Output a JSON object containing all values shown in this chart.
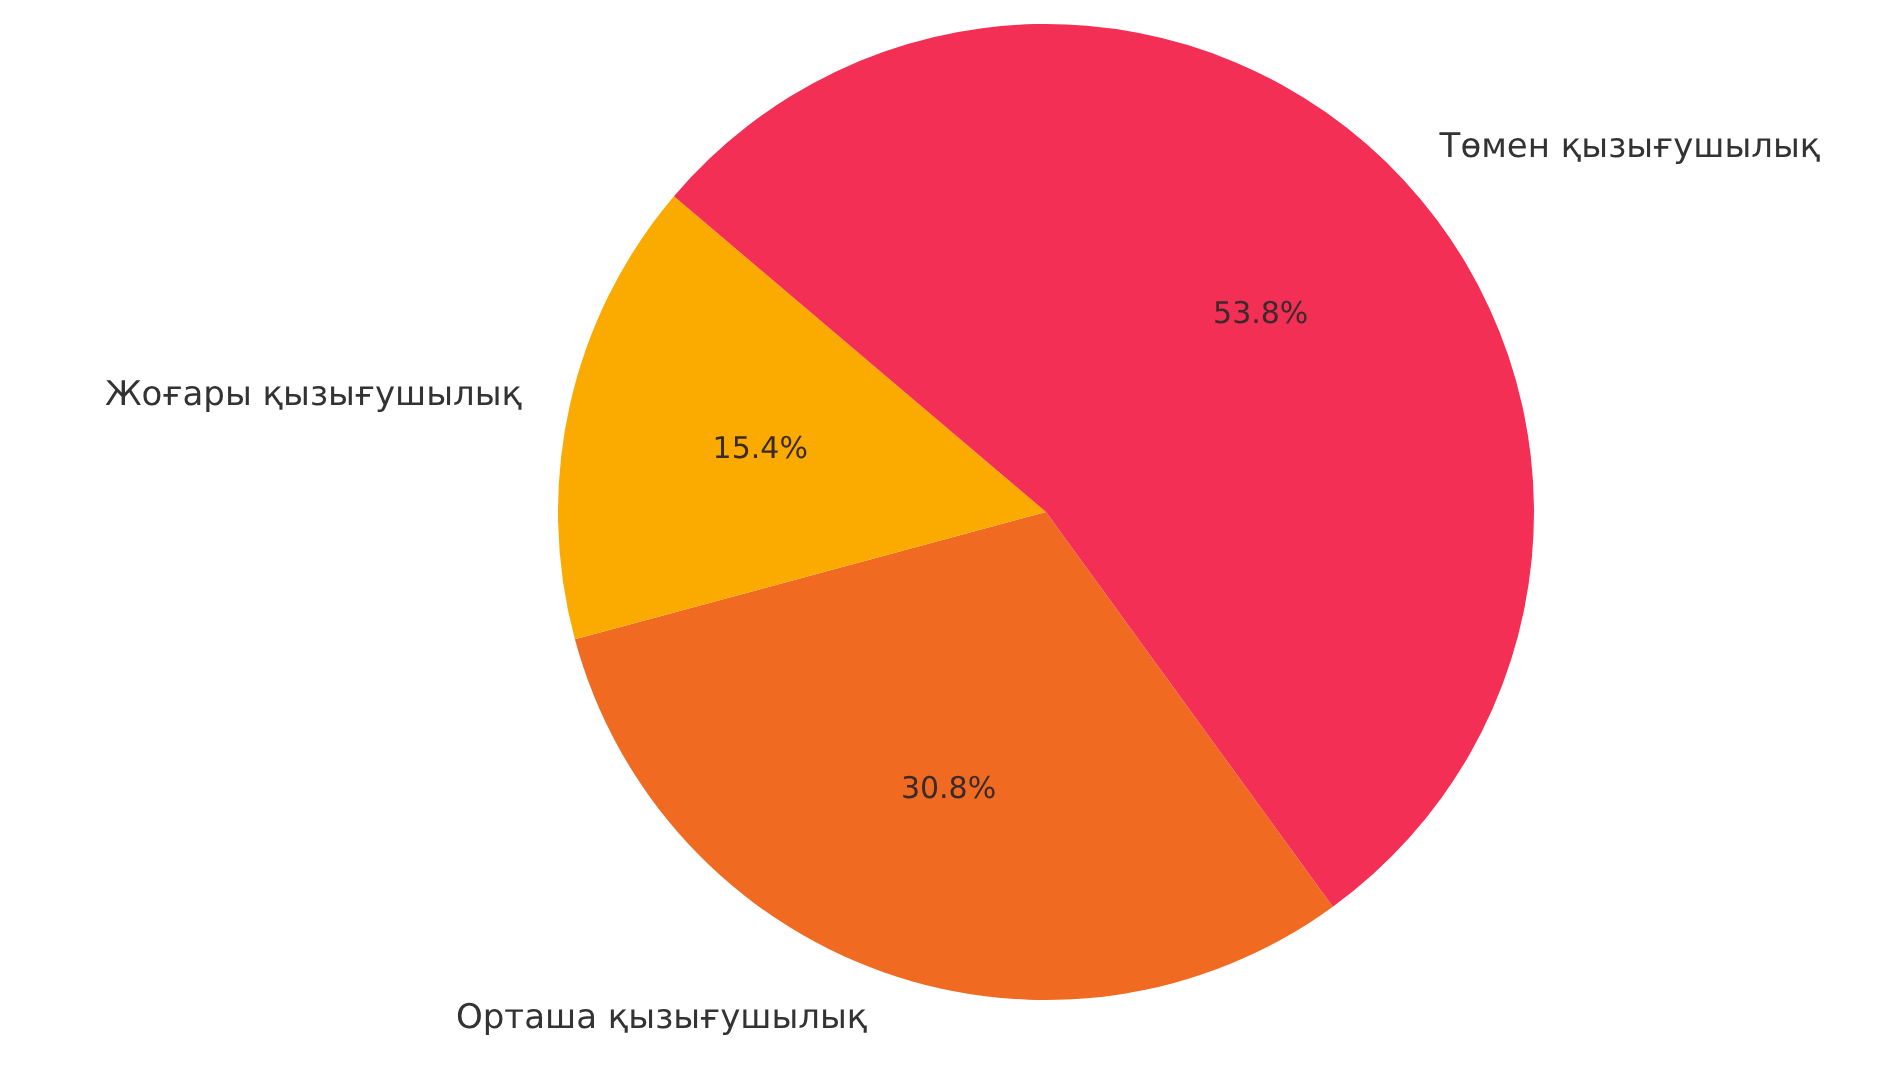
{
  "chart_data": {
    "type": "pie",
    "categories": [
      "Орташа қызығушылық",
      "Жоғары қызығушылық",
      "Төмен қызығушылық"
    ],
    "values": [
      30.8,
      15.4,
      53.8
    ],
    "colors": [
      "#f06a22",
      "#fbab00",
      "#f42f56"
    ],
    "value_labels": [
      "30.8%",
      "15.4%",
      "53.8%"
    ]
  }
}
